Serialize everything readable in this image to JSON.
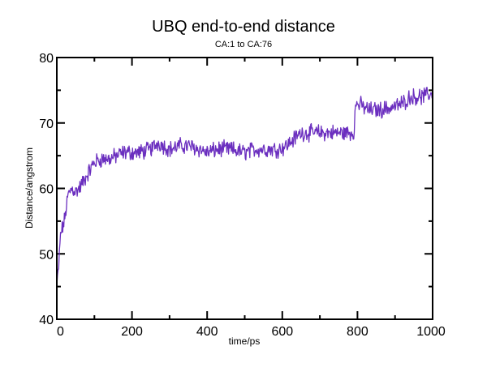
{
  "chart_data": {
    "type": "line",
    "title": "UBQ end-to-end distance",
    "subtitle": "CA:1 to CA:76",
    "xlabel": "time/ps",
    "ylabel": "Distance/angstrom",
    "xlim": [
      0,
      1000
    ],
    "ylim": [
      40,
      80
    ],
    "xticks": [
      0,
      200,
      400,
      600,
      800,
      1000
    ],
    "yticks": [
      40,
      50,
      60,
      70,
      80
    ],
    "xminor_step": 100,
    "yminor_step": 5,
    "grid": false,
    "legend": null,
    "series": [
      {
        "name": "CA:1 to CA:76",
        "color": "#6b2fbf",
        "x": [
          0,
          5,
          10,
          20,
          30,
          40,
          50,
          60,
          70,
          80,
          90,
          100,
          120,
          140,
          160,
          180,
          200,
          220,
          250,
          270,
          300,
          330,
          350,
          380,
          400,
          430,
          460,
          500,
          530,
          560,
          590,
          610,
          630,
          650,
          680,
          720,
          760,
          790,
          795,
          800,
          830,
          860,
          900,
          920,
          940,
          970,
          1000
        ],
        "y": [
          45,
          48,
          53,
          55,
          59,
          60,
          59.5,
          60,
          61,
          62,
          63,
          64,
          64.5,
          64.5,
          65,
          65.5,
          65.5,
          65.5,
          66,
          67,
          66,
          66.5,
          66.5,
          66,
          65.5,
          66,
          66,
          65.5,
          66,
          66,
          66,
          66.5,
          67.5,
          68.5,
          68.5,
          68.5,
          68.5,
          68.5,
          72.5,
          73,
          72,
          72,
          72.5,
          73,
          74,
          74,
          74.5
        ]
      }
    ]
  }
}
